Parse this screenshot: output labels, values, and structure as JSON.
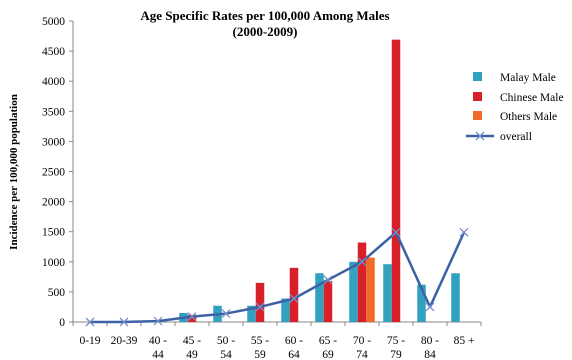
{
  "chart_data": {
    "type": "bar",
    "title_lines": [
      "Age Specific Rates per 100,000 Among Males",
      "(2000-2009)"
    ],
    "xlabel": "",
    "ylabel": "Incidence per 100,000 population",
    "ylim": [
      0,
      5000
    ],
    "yticks": [
      0,
      500,
      1000,
      1500,
      2000,
      2500,
      3000,
      3500,
      4000,
      4500,
      5000
    ],
    "grid": false,
    "legend_position": "right",
    "categories": [
      [
        "0-19"
      ],
      [
        "20-39"
      ],
      [
        "40 -",
        "44"
      ],
      [
        "45 -",
        "49"
      ],
      [
        "50 -",
        "54"
      ],
      [
        "55 -",
        "59"
      ],
      [
        "60 -",
        "64"
      ],
      [
        "65 -",
        "69"
      ],
      [
        "70 -",
        "74"
      ],
      [
        "75 -",
        "79"
      ],
      [
        "80 -",
        "84"
      ],
      [
        "85 +"
      ]
    ],
    "series": [
      {
        "name": "Malay Male",
        "kind": "bar",
        "color": "#31a1c0",
        "values": [
          0,
          0,
          0,
          150,
          270,
          270,
          390,
          810,
          1000,
          960,
          620,
          810
        ]
      },
      {
        "name": "Chinese Male",
        "kind": "bar",
        "color": "#d7202a",
        "values": [
          0,
          0,
          0,
          120,
          0,
          650,
          900,
          680,
          1320,
          4690,
          0,
          0
        ]
      },
      {
        "name": "Others Male",
        "kind": "bar",
        "color": "#f06a28",
        "values": [
          0,
          0,
          0,
          0,
          0,
          0,
          0,
          0,
          1070,
          0,
          0,
          0
        ]
      },
      {
        "name": "overall",
        "kind": "line",
        "color": "#3c61a6",
        "values": [
          0,
          0,
          15,
          90,
          140,
          250,
          390,
          700,
          1000,
          1490,
          250,
          1490
        ]
      }
    ]
  }
}
